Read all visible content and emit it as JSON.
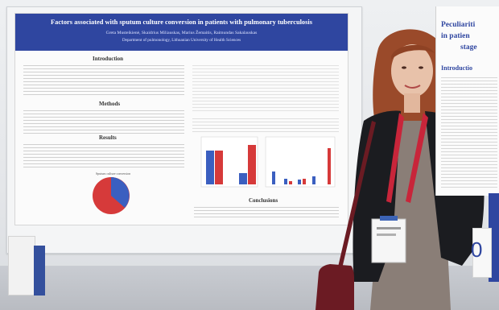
{
  "poster": {
    "title": "Factors associated with sputum culture conversion in patients with pulmonary tuberculosis",
    "authors": "Greta Musteikienė, Skaidrius Miliauskas, Marius Žemaitis, Raimundas Sakalauskas",
    "affiliation": "Department of pulmonology, Lithuanian University of Health Sciences",
    "sections": {
      "introduction": "Introduction",
      "methods": "Methods",
      "results": "Results",
      "conclusions": "Conclusions"
    },
    "pie_title": "Sputum culture conversion"
  },
  "right_poster": {
    "title_line1": "Peculiariti",
    "title_line2": "in patien",
    "title_line3": "stage",
    "subhead": "Introductio",
    "big_mark": "0"
  },
  "colors": {
    "poster_header": "#2f46a0",
    "bar_blue": "#3b5fc0",
    "bar_red": "#d63a3a",
    "jacket": "#1b1c20",
    "dress": "#8a7e77",
    "lanyard": "#c8253a",
    "bag": "#6b1b23",
    "hair": "#9a4a2a"
  }
}
